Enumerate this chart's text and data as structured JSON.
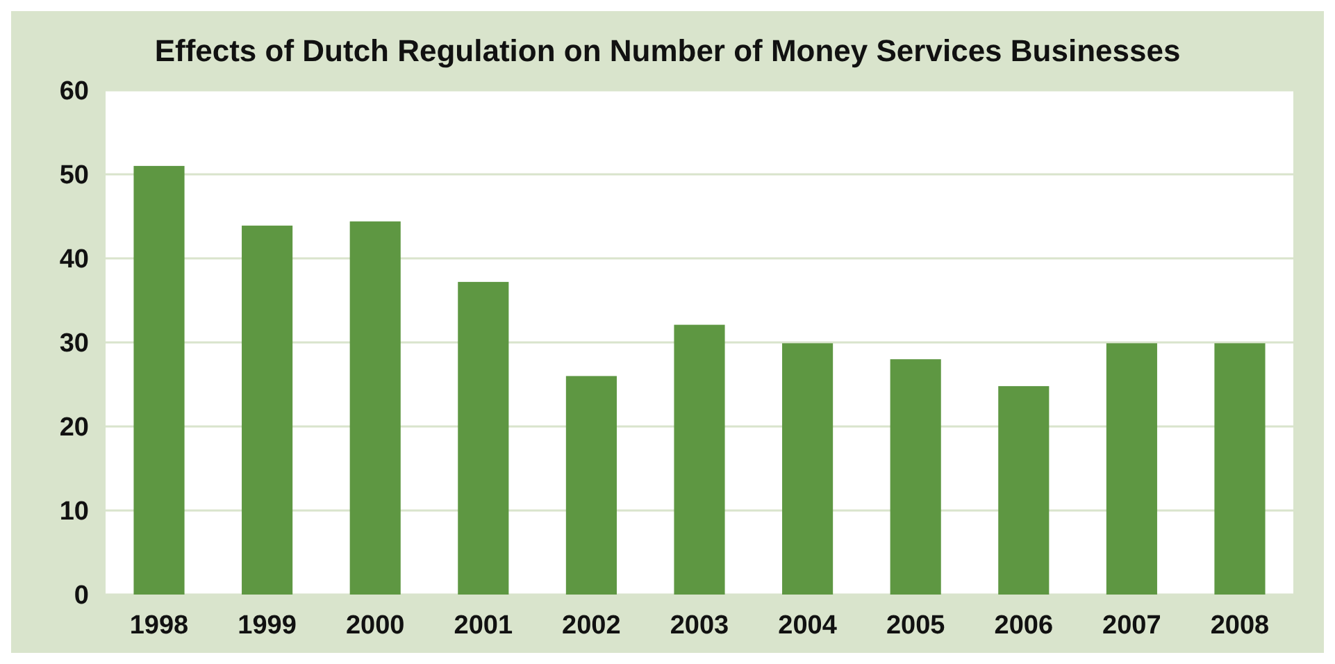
{
  "chart_data": {
    "type": "bar",
    "title": "Effects of Dutch Regulation on Number of Money Services Businesses",
    "categories": [
      "1998",
      "1999",
      "2000",
      "2001",
      "2002",
      "2003",
      "2004",
      "2005",
      "2006",
      "2007",
      "2008"
    ],
    "values": [
      51,
      43.9,
      44.4,
      37.2,
      26,
      32.1,
      29.9,
      28,
      24.8,
      29.9,
      29.9
    ],
    "color": "#5e9742",
    "ylim": [
      0,
      60
    ],
    "yticks": [
      0,
      10,
      20,
      30,
      40,
      50,
      60
    ],
    "grid": "y"
  }
}
